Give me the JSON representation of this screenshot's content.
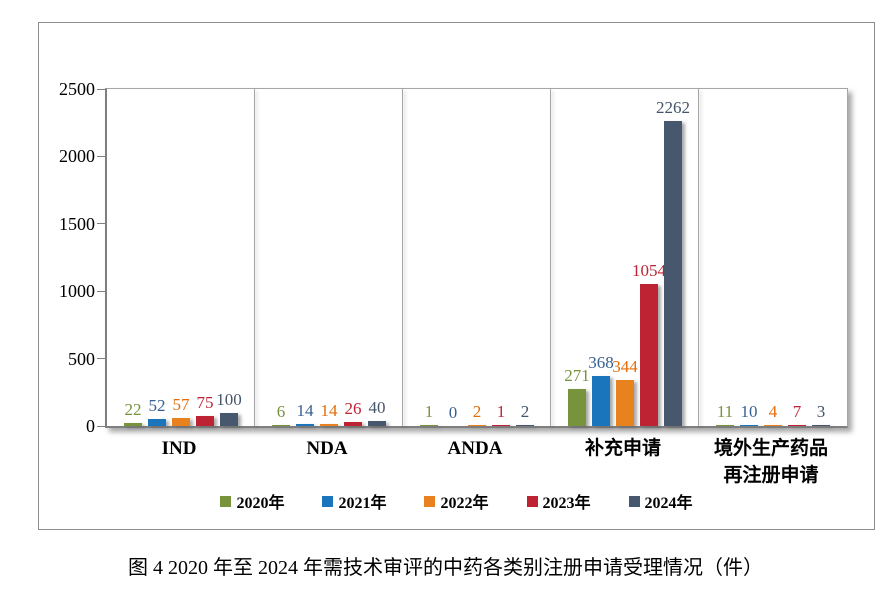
{
  "figure": {
    "caption": "图 4  2020 年至 2024 年需技术审评的中药各类别注册申请受理情况（件）"
  },
  "chart_data": {
    "type": "bar",
    "title": "",
    "xlabel": "",
    "ylabel": "",
    "categories": [
      "IND",
      "NDA",
      "ANDA",
      "补充申请",
      "境外生产药品\n再注册申请"
    ],
    "series": [
      {
        "name": "2020年",
        "color": "#77933c",
        "label_color": "#77933c",
        "values": [
          22,
          6,
          1,
          271,
          11
        ]
      },
      {
        "name": "2021年",
        "color": "#1b75bc",
        "label_color": "#376092",
        "values": [
          52,
          14,
          0,
          368,
          10
        ]
      },
      {
        "name": "2022年",
        "color": "#e8821e",
        "label_color": "#e36c09",
        "values": [
          57,
          14,
          2,
          344,
          4
        ]
      },
      {
        "name": "2023年",
        "color": "#be2333",
        "label_color": "#be2333",
        "values": [
          75,
          26,
          1,
          1054,
          7
        ]
      },
      {
        "name": "2024年",
        "color": "#47586e",
        "label_color": "#44546a",
        "values": [
          100,
          40,
          2,
          2262,
          3
        ]
      }
    ],
    "y_axis": {
      "min": 0,
      "max": 2500,
      "step": 500,
      "ticks": [
        0,
        500,
        1000,
        1500,
        2000,
        2500
      ]
    },
    "legend_position": "bottom",
    "grid": "panel-separators",
    "value_labels": "outside-end"
  }
}
